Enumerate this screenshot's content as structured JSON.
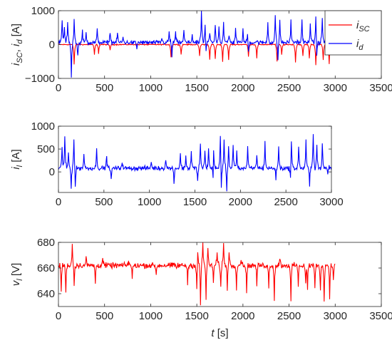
{
  "chart_data": [
    {
      "type": "line",
      "ylabel_parts": [
        {
          "t": "i",
          "i": true
        },
        {
          "t": "SC",
          "sub": true,
          "i": true
        },
        {
          "t": ", "
        },
        {
          "t": "i",
          "i": true
        },
        {
          "t": "d",
          "sub": true,
          "i": true
        },
        {
          "t": " [A]"
        }
      ],
      "xlim": [
        0,
        3500
      ],
      "ylim": [
        -1000,
        1000
      ],
      "xticks": [
        "0",
        "500",
        "1000",
        "1500",
        "2000",
        "2500",
        "3000",
        "3500"
      ],
      "yticks": [
        "-1000",
        "0",
        "1000"
      ],
      "legend_position": "top-right",
      "series": [
        {
          "name": "i_SC",
          "legend_label": "i",
          "legend_sub": "SC",
          "color": "#ff0000",
          "role": "isc",
          "baseline": 0,
          "noise": 12,
          "spikes": [
            [
              170,
              -580
            ],
            [
              390,
              -300
            ],
            [
              435,
              -260
            ],
            [
              560,
              -160
            ],
            [
              1220,
              -380
            ],
            [
              1330,
              -300
            ],
            [
              1530,
              -350
            ],
            [
              1640,
              -450
            ],
            [
              1700,
              -420
            ],
            [
              1780,
              -500
            ],
            [
              1845,
              -450
            ],
            [
              2060,
              -350
            ],
            [
              2150,
              -400
            ],
            [
              2370,
              -500
            ],
            [
              2420,
              -300
            ],
            [
              2570,
              -530
            ],
            [
              2650,
              -350
            ],
            [
              2720,
              -400
            ],
            [
              2790,
              -600
            ],
            [
              2870,
              -450
            ],
            [
              2935,
              -580
            ]
          ]
        },
        {
          "name": "i_d",
          "legend_label": "i",
          "legend_sub": "d",
          "color": "#0000ff",
          "role": "id",
          "baseline": 60,
          "noise": 45,
          "spikes": [
            [
              40,
              750
            ],
            [
              65,
              500
            ],
            [
              100,
              650
            ],
            [
              140,
              -400
            ],
            [
              170,
              720
            ],
            [
              210,
              -350
            ],
            [
              260,
              380
            ],
            [
              300,
              350
            ],
            [
              420,
              430
            ],
            [
              560,
              400
            ],
            [
              640,
              350
            ],
            [
              700,
              220
            ],
            [
              1120,
              200
            ],
            [
              1200,
              380
            ],
            [
              1270,
              350
            ],
            [
              1360,
              420
            ],
            [
              1450,
              300
            ],
            [
              1550,
              1000
            ],
            [
              1590,
              600
            ],
            [
              1640,
              380
            ],
            [
              1700,
              620
            ],
            [
              1740,
              580
            ],
            [
              1790,
              650
            ],
            [
              1850,
              700
            ],
            [
              1920,
              500
            ],
            [
              2000,
              420
            ],
            [
              2050,
              350
            ],
            [
              2150,
              380
            ],
            [
              2270,
              650
            ],
            [
              2350,
              850
            ],
            [
              2400,
              700
            ],
            [
              2520,
              700
            ],
            [
              2580,
              450
            ],
            [
              2640,
              700
            ],
            [
              2730,
              650
            ],
            [
              2790,
              900
            ],
            [
              2860,
              800
            ],
            [
              2920,
              500
            ],
            [
              2970,
              420
            ]
          ],
          "dips": [
            [
              140,
              -470
            ],
            [
              850,
              -150
            ],
            [
              1230,
              -350
            ],
            [
              1600,
              -320
            ],
            [
              1850,
              -380
            ],
            [
              2060,
              -300
            ],
            [
              2150,
              -250
            ],
            [
              2380,
              -480
            ],
            [
              2580,
              -330
            ],
            [
              2800,
              -500
            ]
          ]
        }
      ]
    },
    {
      "type": "line",
      "ylabel_parts": [
        {
          "t": "i",
          "i": true
        },
        {
          "t": "l",
          "sub": true,
          "i": true
        },
        {
          "t": " [A]"
        }
      ],
      "xlim": [
        0,
        3000
      ],
      "ylim": [
        -450,
        1000
      ],
      "xticks": [
        "0",
        "500",
        "1000",
        "1500",
        "2000",
        "2500",
        "3000"
      ],
      "yticks": [
        "0",
        "500",
        "1000"
      ],
      "series": [
        {
          "name": "i_l",
          "color": "#0000ff",
          "role": "il",
          "baseline": 80,
          "noise": 35,
          "spikes": [
            [
              40,
              550
            ],
            [
              70,
              780
            ],
            [
              110,
              420
            ],
            [
              170,
              750
            ],
            [
              280,
              400
            ],
            [
              420,
              500
            ],
            [
              530,
              350
            ],
            [
              700,
              250
            ],
            [
              1020,
              230
            ],
            [
              1180,
              300
            ],
            [
              1340,
              400
            ],
            [
              1400,
              350
            ],
            [
              1460,
              450
            ],
            [
              1560,
              640
            ],
            [
              1610,
              450
            ],
            [
              1650,
              500
            ],
            [
              1705,
              640
            ],
            [
              1780,
              880
            ],
            [
              1820,
              700
            ],
            [
              1870,
              540
            ],
            [
              1920,
              600
            ],
            [
              1960,
              460
            ],
            [
              2080,
              520
            ],
            [
              2180,
              380
            ],
            [
              2270,
              650
            ],
            [
              2420,
              540
            ],
            [
              2560,
              700
            ],
            [
              2640,
              560
            ],
            [
              2720,
              680
            ],
            [
              2800,
              860
            ],
            [
              2840,
              620
            ],
            [
              2900,
              600
            ],
            [
              2980,
              120
            ]
          ],
          "dips": [
            [
              140,
              -320
            ],
            [
              185,
              -380
            ],
            [
              580,
              -200
            ],
            [
              1270,
              -250
            ],
            [
              1530,
              -200
            ],
            [
              1700,
              -350
            ],
            [
              1790,
              -450
            ],
            [
              1850,
              -420
            ],
            [
              2390,
              -150
            ],
            [
              2550,
              -230
            ],
            [
              2760,
              -300
            ],
            [
              2960,
              -50
            ]
          ]
        }
      ]
    },
    {
      "type": "line",
      "ylabel_parts": [
        {
          "t": "v",
          "i": true
        },
        {
          "t": "l",
          "sub": true,
          "i": true
        },
        {
          "t": " [V]"
        }
      ],
      "xlabel_parts": [
        {
          "t": "t",
          "i": true
        },
        {
          "t": " [s]"
        }
      ],
      "xlim": [
        0,
        3500
      ],
      "ylim": [
        630,
        680
      ],
      "xticks": [
        "0",
        "500",
        "1000",
        "1500",
        "2000",
        "2500",
        "3000",
        "3500"
      ],
      "yticks": [
        "640",
        "660",
        "680"
      ],
      "series": [
        {
          "name": "v_l",
          "color": "#ff0000",
          "role": "vl",
          "baseline": 662,
          "noise": 1.6,
          "spikes": [
            [
              150,
              678
            ],
            [
              300,
              668
            ],
            [
              480,
              668
            ],
            [
              760,
              666
            ],
            [
              1280,
              668
            ],
            [
              1510,
              675
            ],
            [
              1565,
              680
            ],
            [
              1620,
              674
            ],
            [
              1720,
              672
            ],
            [
              1790,
              679
            ],
            [
              1850,
              672
            ],
            [
              1980,
              668
            ],
            [
              2400,
              668
            ],
            [
              2700,
              667
            ]
          ],
          "dips": [
            [
              30,
              642
            ],
            [
              80,
              640
            ],
            [
              170,
              647
            ],
            [
              400,
              648
            ],
            [
              800,
              652
            ],
            [
              1060,
              654
            ],
            [
              1280,
              653
            ],
            [
              1400,
              648
            ],
            [
              1500,
              640
            ],
            [
              1540,
              631
            ],
            [
              1600,
              637
            ],
            [
              1680,
              649
            ],
            [
              1760,
              645
            ],
            [
              1830,
              644
            ],
            [
              1930,
              645
            ],
            [
              2040,
              641
            ],
            [
              2150,
              647
            ],
            [
              2280,
              644
            ],
            [
              2340,
              635
            ],
            [
              2520,
              633
            ],
            [
              2600,
              645
            ],
            [
              2680,
              647
            ],
            [
              2700,
              638
            ],
            [
              2780,
              643
            ],
            [
              2840,
              641
            ],
            [
              2880,
              634
            ],
            [
              2940,
              637
            ],
            [
              2980,
              652
            ]
          ]
        }
      ]
    }
  ]
}
